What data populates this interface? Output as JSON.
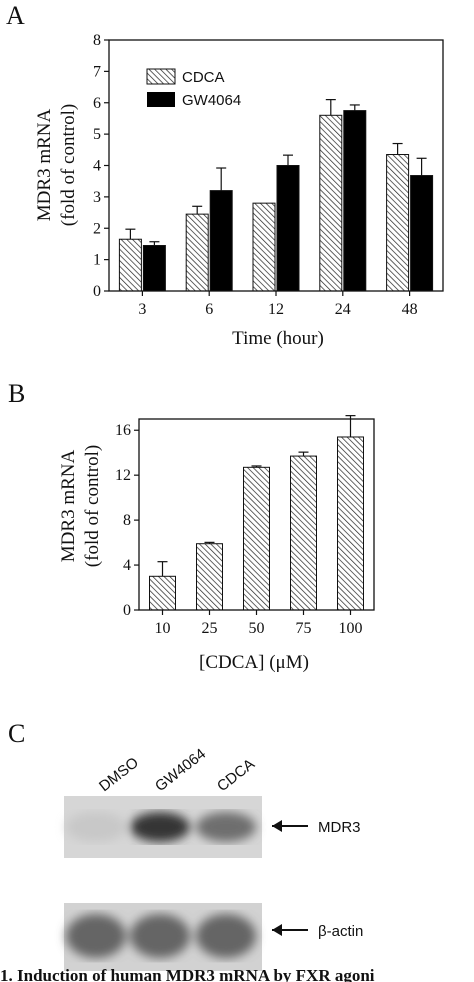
{
  "panels": {
    "A": {
      "letter": "A"
    },
    "B": {
      "letter": "B"
    },
    "C": {
      "letter": "C"
    }
  },
  "chart_data": [
    {
      "type": "bar",
      "panel": "A",
      "xlabel": "Time (hour)",
      "ylabel_lines": [
        "MDR3 mRNA",
        "(fold of control)"
      ],
      "categories": [
        "3",
        "6",
        "12",
        "24",
        "48"
      ],
      "ylim": [
        0,
        8
      ],
      "yticks": [
        0,
        1,
        2,
        3,
        4,
        5,
        6,
        7,
        8
      ],
      "legend_position": "top-left",
      "series": [
        {
          "name": "CDCA",
          "fill": "hatched",
          "values": [
            1.65,
            2.45,
            2.8,
            5.6,
            4.35
          ],
          "errors": [
            0.32,
            0.25,
            0.0,
            0.5,
            0.35
          ]
        },
        {
          "name": "GW4064",
          "fill": "solid",
          "color": "#000000",
          "values": [
            1.45,
            3.2,
            4.0,
            5.75,
            3.68
          ],
          "errors": [
            0.12,
            0.72,
            0.33,
            0.18,
            0.55
          ]
        }
      ]
    },
    {
      "type": "bar",
      "panel": "B",
      "xlabel": "[CDCA] (μM)",
      "ylabel_lines": [
        "MDR3 mRNA",
        "(fold of control)"
      ],
      "categories": [
        "10",
        "25",
        "50",
        "75",
        "100"
      ],
      "ylim": [
        0,
        17
      ],
      "yticks": [
        0,
        4,
        8,
        12,
        16
      ],
      "series": [
        {
          "fill": "hatched",
          "values": [
            3.0,
            5.9,
            12.7,
            13.7,
            15.4
          ],
          "errors": [
            1.3,
            0.12,
            0.12,
            0.35,
            1.9
          ]
        }
      ]
    }
  ],
  "blot": {
    "lanes": [
      "DMSO",
      "GW4064",
      "CDCA"
    ],
    "rows": [
      {
        "label": "MDR3",
        "intensity": [
          0.08,
          0.85,
          0.55
        ]
      },
      {
        "label": "β-actin",
        "intensity": [
          0.6,
          0.6,
          0.6
        ]
      }
    ]
  },
  "caption": "1. Induction of human MDR3 mRNA by FXR agoni"
}
